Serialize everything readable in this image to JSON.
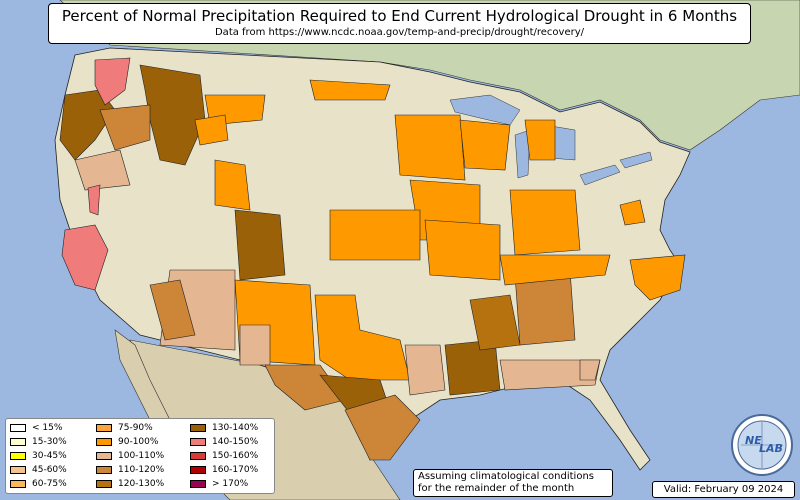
{
  "title": "Percent of Normal Precipitation Required to End Current Hydrological Drought in 6 Months",
  "subtitle": "Data from https://www.ncdc.noaa.gov/temp-and-precip/drought/recovery/",
  "legend": [
    {
      "label": "< 15%",
      "color": "#ffffff"
    },
    {
      "label": "15-30%",
      "color": "#ffffcc"
    },
    {
      "label": "30-45%",
      "color": "#ffff00"
    },
    {
      "label": "45-60%",
      "color": "#f3c38e"
    },
    {
      "label": "60-75%",
      "color": "#f8b75c"
    },
    {
      "label": "75-90%",
      "color": "#fda53b"
    },
    {
      "label": "90-100%",
      "color": "#ff9900"
    },
    {
      "label": "100-110%",
      "color": "#e4b792"
    },
    {
      "label": "110-120%",
      "color": "#cd8538"
    },
    {
      "label": "120-130%",
      "color": "#b5720f"
    },
    {
      "label": "130-140%",
      "color": "#9b6108"
    },
    {
      "label": "140-150%",
      "color": "#f07b7b"
    },
    {
      "label": "150-160%",
      "color": "#d83a3a"
    },
    {
      "label": "160-170%",
      "color": "#b00000"
    },
    {
      "label": "> 170%",
      "color": "#9c0050"
    }
  ],
  "assumption_line1": "Assuming climatological conditions",
  "assumption_line2": "for the remainder of the month",
  "valid": "Valid: February 09 2024",
  "logo_text_1": "NE",
  "logo_text_2": "LAB"
}
